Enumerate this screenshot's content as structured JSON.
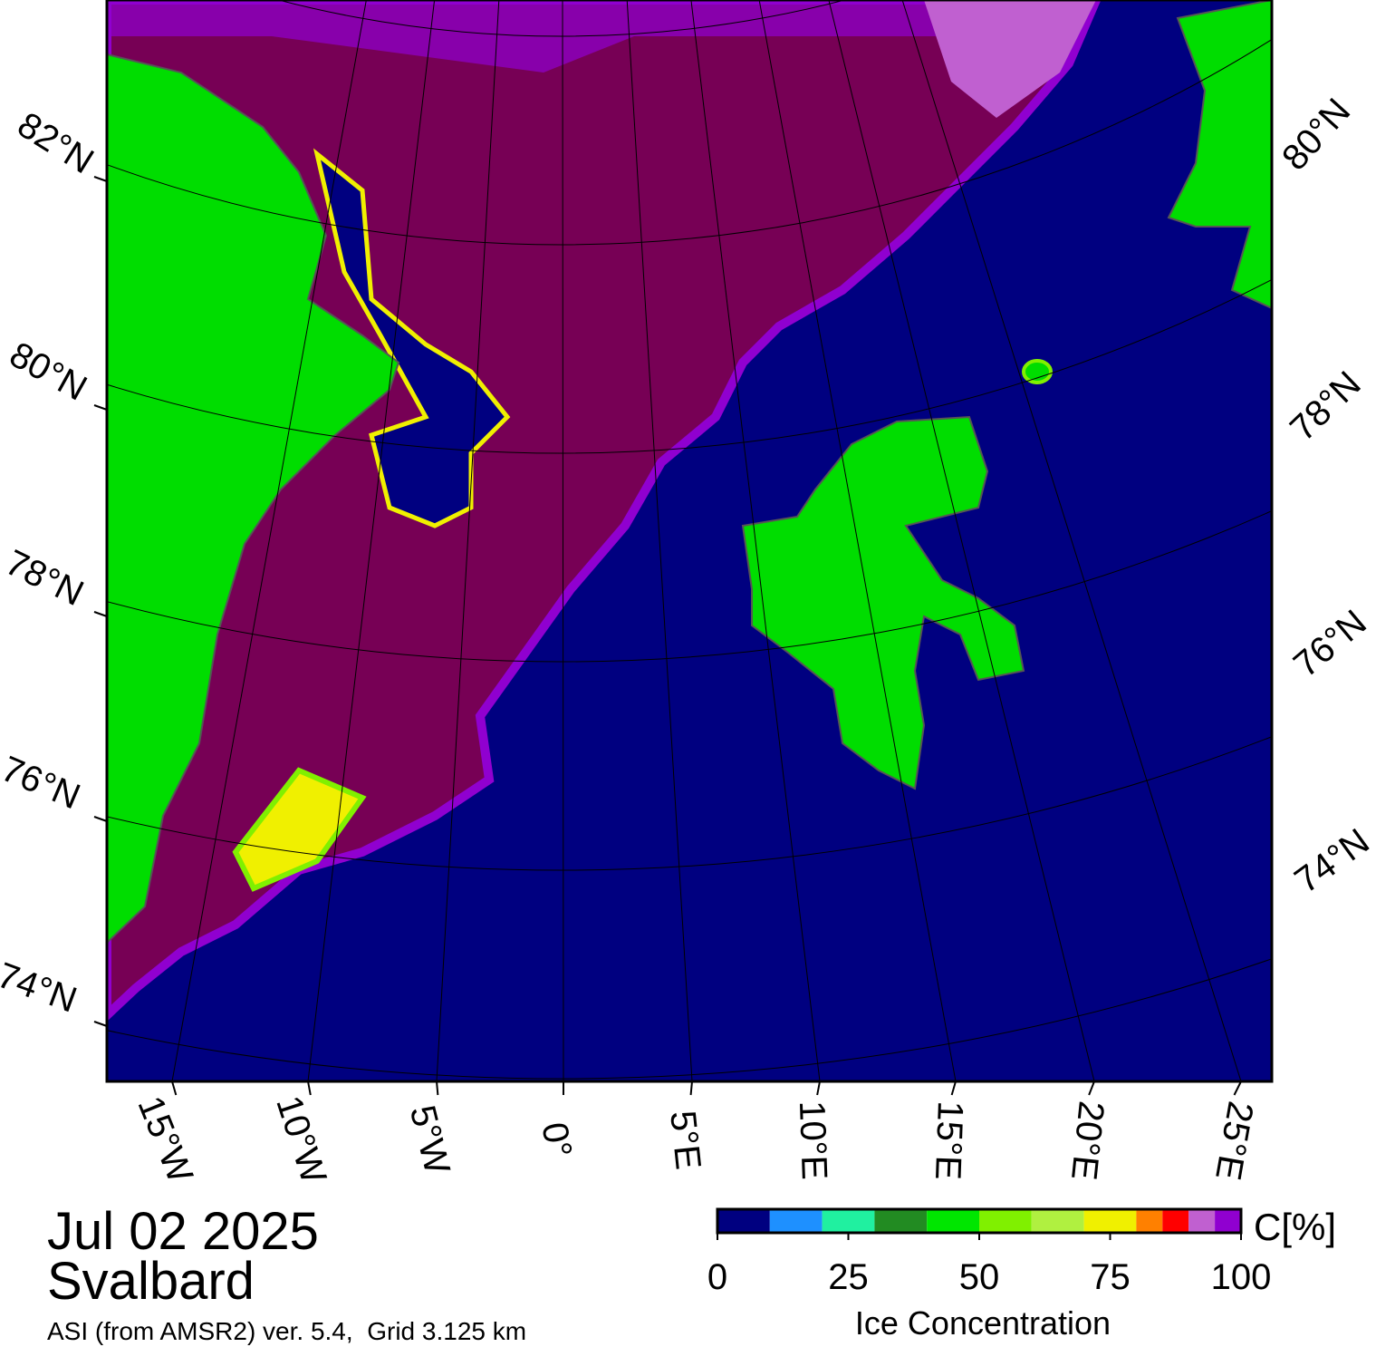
{
  "map": {
    "lat_labels_left": [
      "82°N",
      "80°N",
      "78°N",
      "76°N",
      "74°N"
    ],
    "lat_labels_right": [
      "80°N",
      "78°N",
      "76°N",
      "74°N"
    ],
    "lon_labels": [
      "15°W",
      "10°W",
      "5°W",
      "0°",
      "5°E",
      "10°E",
      "15°E",
      "20°E",
      "25°E"
    ]
  },
  "info": {
    "date": "Jul 02 2025",
    "region": "Svalbard",
    "source": "ASI (from AMSR2) ver. 5.4,  Grid 3.125 km"
  },
  "colorbar": {
    "unit": "C[%]",
    "label": "Ice Concentration",
    "lim": [
      0,
      100
    ],
    "ticks": [
      0,
      25,
      50,
      75,
      100
    ],
    "bounds": [
      0,
      10,
      20,
      30,
      40,
      50,
      60,
      70,
      80,
      85,
      90,
      95,
      100
    ],
    "colors": [
      "#000080",
      "#1e90ff",
      "#20f0a0",
      "#228b22",
      "#00e600",
      "#80f000",
      "#b0f040",
      "#f0f000",
      "#ff8000",
      "#ff0000",
      "#c060d0",
      "#9000d0"
    ]
  }
}
